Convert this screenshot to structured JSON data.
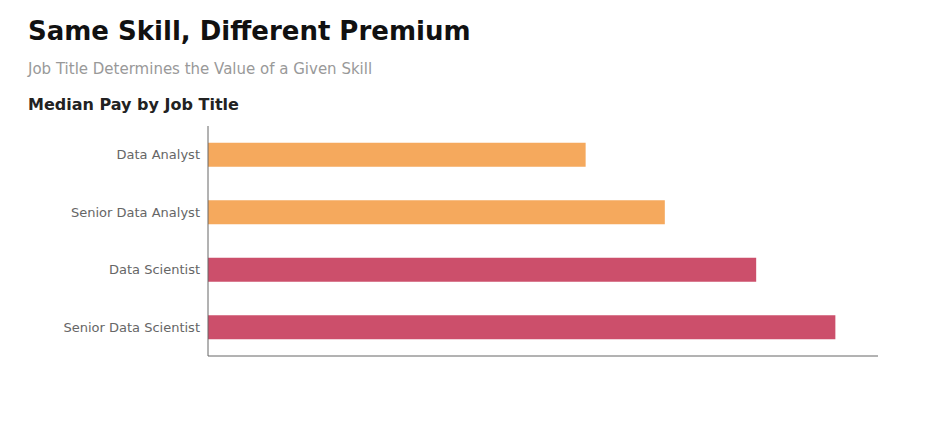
{
  "chart_data": {
    "type": "bar",
    "orientation": "horizontal",
    "title": "Same Skill, Different Premium",
    "subtitle": "Job Title Determines the Value of a Given Skill",
    "annotations": [
      "Median Pay by Job Title"
    ],
    "categories": [
      "Data Analyst",
      "Senior Data Analyst",
      "Data Scientist",
      "Senior Data Scientist"
    ],
    "values": [
      62,
      75,
      90,
      103
    ],
    "colors": [
      "#F5A95D",
      "#F5A95D",
      "#CC4F6B",
      "#CC4F6B"
    ],
    "xlim": [
      0,
      110
    ],
    "xticks": [],
    "grid": false,
    "tick_labels": "y",
    "data_labels": false
  }
}
